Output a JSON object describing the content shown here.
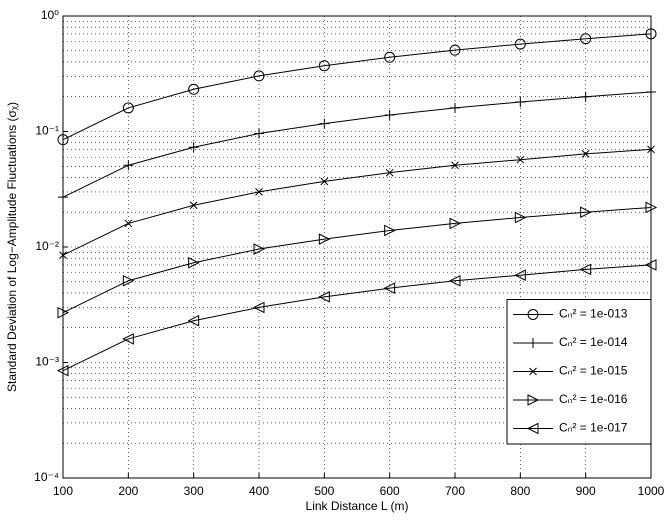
{
  "chart_data": {
    "type": "line",
    "xlabel": "Link Distance L (m)",
    "ylabel": "Standard Deviation of Log−Amplitude Fluctuations (σᵪ)",
    "x": [
      100,
      200,
      300,
      400,
      500,
      600,
      700,
      800,
      900,
      1000
    ],
    "series": [
      {
        "name": "Cₙ² = 1e-013",
        "color": "#000000",
        "marker": "o",
        "values": [
          0.085,
          0.16,
          0.232,
          0.303,
          0.371,
          0.439,
          0.506,
          0.571,
          0.636,
          0.701
        ]
      },
      {
        "name": "Cₙ² = 1e-014",
        "color": "#000000",
        "marker": "+",
        "values": [
          0.027,
          0.051,
          0.073,
          0.096,
          0.117,
          0.139,
          0.16,
          0.18,
          0.2,
          0.22
        ]
      },
      {
        "name": "Cₙ² = 1e-015",
        "color": "#000000",
        "marker": "x",
        "values": [
          0.0085,
          0.016,
          0.023,
          0.03,
          0.037,
          0.044,
          0.051,
          0.057,
          0.064,
          0.07
        ]
      },
      {
        "name": "Cₙ² = 1e-016",
        "color": "#000000",
        "marker": ">",
        "values": [
          0.0027,
          0.0051,
          0.0073,
          0.0096,
          0.0117,
          0.0139,
          0.016,
          0.018,
          0.02,
          0.022
        ]
      },
      {
        "name": "Cₙ² = 1e-017",
        "color": "#000000",
        "marker": "<",
        "values": [
          0.00085,
          0.0016,
          0.0023,
          0.003,
          0.0037,
          0.0044,
          0.0051,
          0.0057,
          0.0064,
          0.007
        ]
      }
    ],
    "xlim": [
      100,
      1000
    ],
    "xticks": [
      100,
      200,
      300,
      400,
      500,
      600,
      700,
      800,
      900,
      1000
    ],
    "ylim": [
      0.0001,
      1
    ],
    "yticks": [
      {
        "value": 0.0001,
        "label": "10⁻⁴"
      },
      {
        "value": 0.001,
        "label": "10⁻³"
      },
      {
        "value": 0.01,
        "label": "10⁻²"
      },
      {
        "value": 0.1,
        "label": "10⁻¹"
      },
      {
        "value": 1,
        "label": "10⁰"
      }
    ],
    "yscale": "log",
    "grid": true,
    "minor_grid": true,
    "legend": "lower right"
  }
}
